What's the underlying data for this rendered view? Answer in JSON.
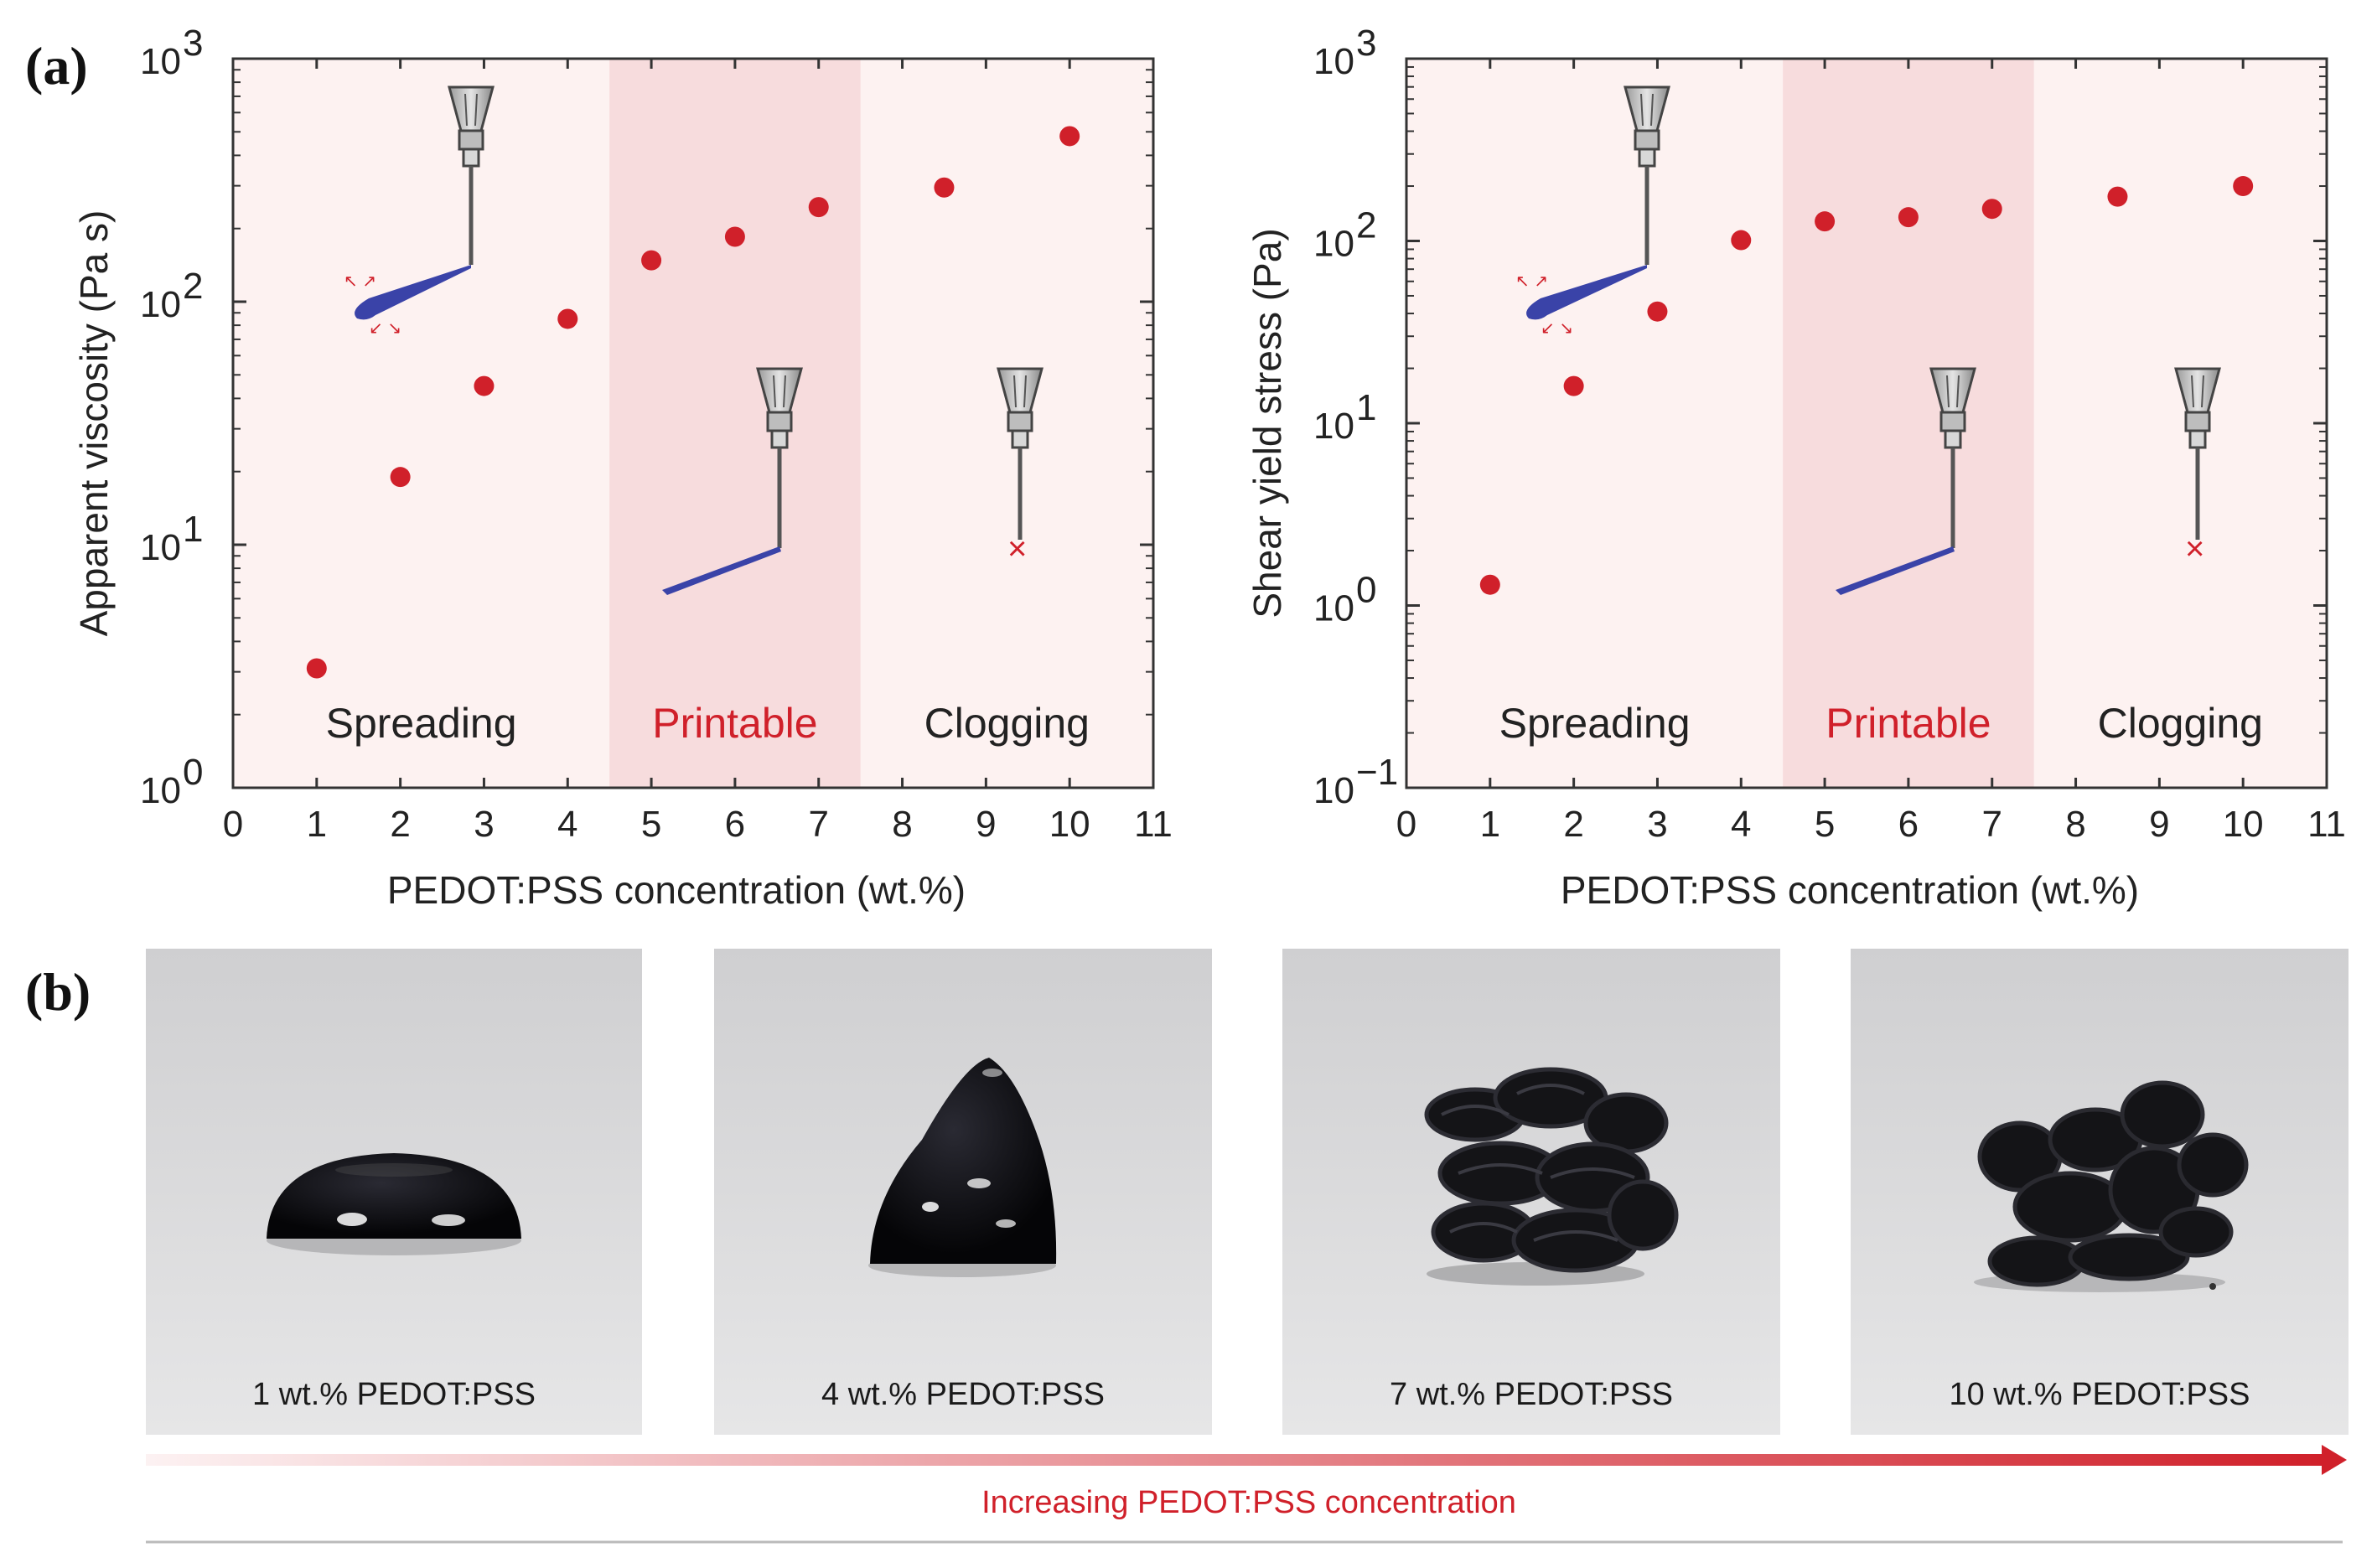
{
  "panel_labels": {
    "a": "(a)",
    "b": "(b)"
  },
  "colors": {
    "background": "#fdf2f1",
    "printable_band": "#f7dcdd",
    "point": "#d0202a",
    "ink": "#3a43a8",
    "axis": "#333333"
  },
  "regions": [
    {
      "label": "Spreading",
      "from": 0,
      "to": 4.5,
      "color": "#222222"
    },
    {
      "label": "Printable",
      "from": 4.5,
      "to": 7.5,
      "color": "#d0202a"
    },
    {
      "label": "Clogging",
      "from": 7.5,
      "to": 11,
      "color": "#222222"
    }
  ],
  "chart_data": [
    {
      "type": "scatter",
      "title": "",
      "xlabel": "PEDOT:PSS concentration (wt.%)",
      "ylabel": "Apparent viscosity (Pa s)",
      "xlim": [
        0,
        11
      ],
      "ylim": [
        1,
        1000
      ],
      "yscale": "log",
      "xticks": [
        "0",
        "1",
        "2",
        "3",
        "4",
        "5",
        "6",
        "7",
        "8",
        "9",
        "10",
        "11"
      ],
      "yticks": [
        {
          "base": "10",
          "exp": "0",
          "value": 1
        },
        {
          "base": "10",
          "exp": "1",
          "value": 10
        },
        {
          "base": "10",
          "exp": "2",
          "value": 100
        },
        {
          "base": "10",
          "exp": "3",
          "value": 1000
        }
      ],
      "x": [
        1,
        2,
        3,
        4,
        5,
        6,
        7,
        8.5,
        10
      ],
      "y": [
        3.1,
        19,
        45,
        85,
        148,
        185,
        245,
        295,
        480
      ]
    },
    {
      "type": "scatter",
      "title": "",
      "xlabel": "PEDOT:PSS concentration (wt.%)",
      "ylabel": "Shear yield stress (Pa)",
      "xlim": [
        0,
        11
      ],
      "ylim": [
        0.1,
        1000
      ],
      "yscale": "log",
      "xticks": [
        "0",
        "1",
        "2",
        "3",
        "4",
        "5",
        "6",
        "7",
        "8",
        "9",
        "10",
        "11"
      ],
      "yticks": [
        {
          "base": "10",
          "exp": "−1",
          "value": 0.1
        },
        {
          "base": "10",
          "exp": "0",
          "value": 1
        },
        {
          "base": "10",
          "exp": "1",
          "value": 10
        },
        {
          "base": "10",
          "exp": "2",
          "value": 100
        },
        {
          "base": "10",
          "exp": "3",
          "value": 1000
        }
      ],
      "x": [
        1,
        2,
        3,
        4,
        5,
        6,
        7,
        8.5,
        10
      ],
      "y": [
        1.3,
        16,
        41,
        101,
        128,
        135,
        150,
        175,
        200
      ]
    }
  ],
  "photos": [
    {
      "caption": "1 wt.% PEDOT:PSS",
      "state": "droplet"
    },
    {
      "caption": "4 wt.% PEDOT:PSS",
      "state": "mound"
    },
    {
      "caption": "7 wt.% PEDOT:PSS",
      "state": "coiled filament"
    },
    {
      "caption": "10 wt.% PEDOT:PSS",
      "state": "clumped filament"
    }
  ],
  "arrow": {
    "label": "Increasing PEDOT:PSS concentration"
  }
}
